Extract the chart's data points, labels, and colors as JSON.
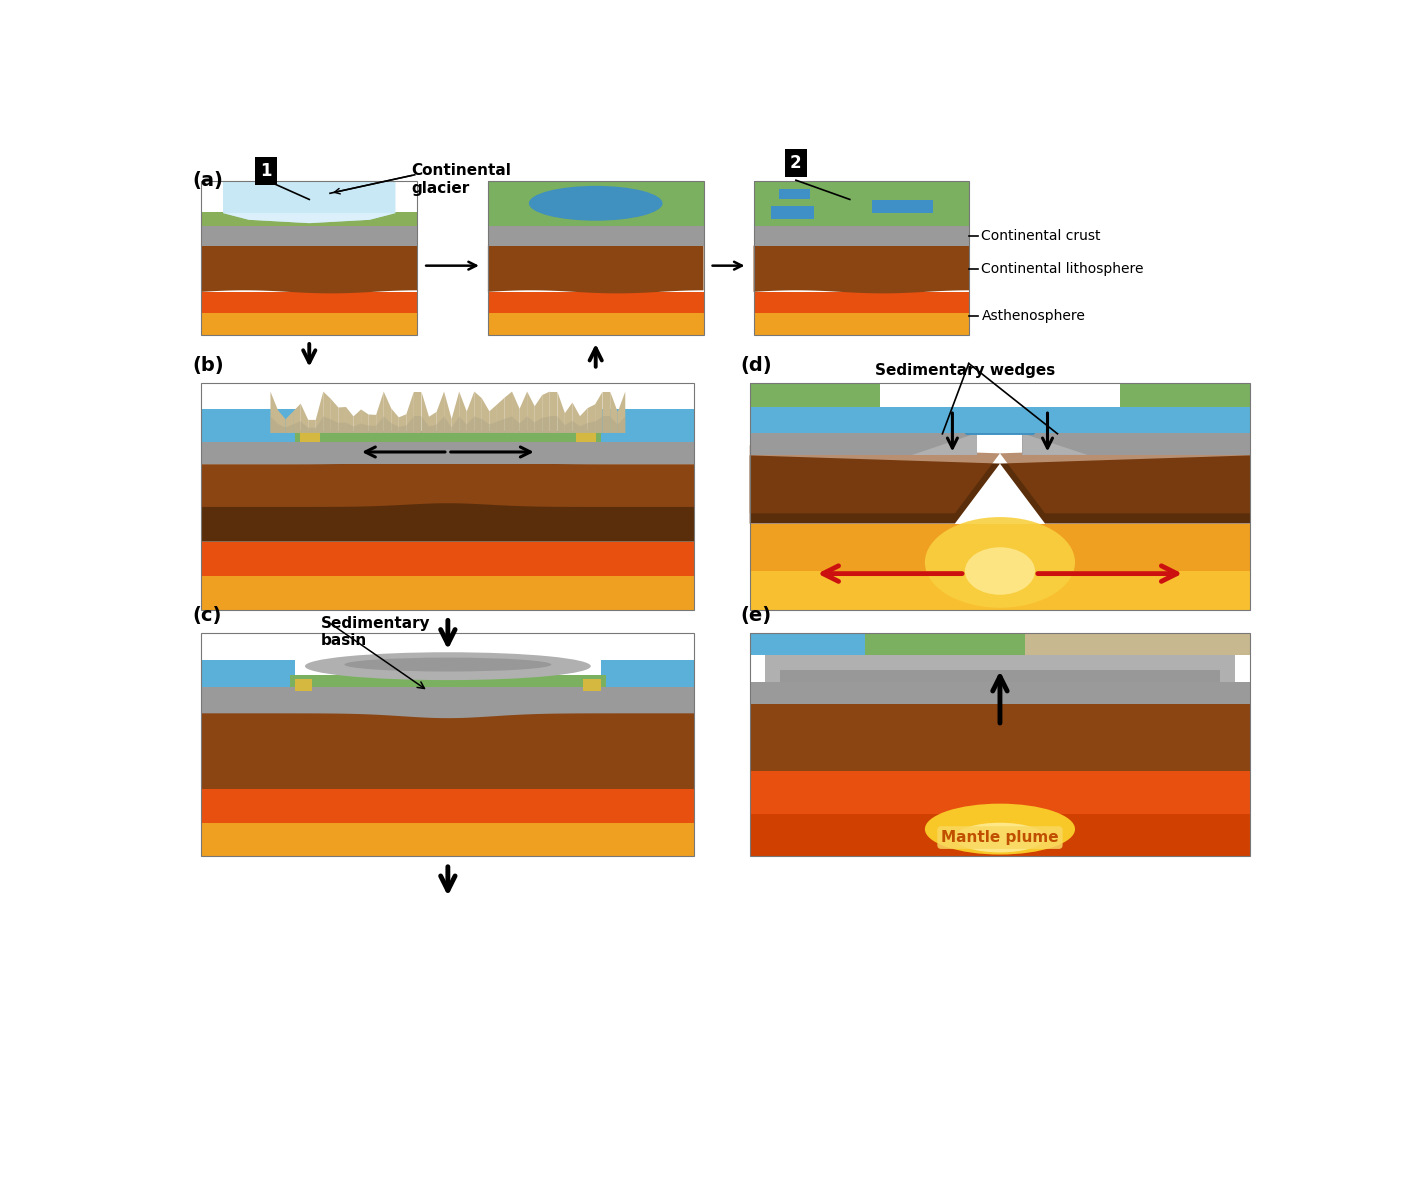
{
  "background_color": "#ffffff",
  "panel_labels": {
    "a": "(a)",
    "b": "(b)",
    "c": "(c)",
    "d": "(d)",
    "e": "(e)"
  },
  "annotations": {
    "continental_glacier": "Continental\nglacier",
    "continental_crust": "Continental crust",
    "continental_lithosphere": "Continental lithosphere",
    "asthenosphere": "Asthenosphere",
    "sedimentary_basin": "Sedimentary\nbasin",
    "sedimentary_wedges": "Sedimentary wedges",
    "mantle_plume": "Mantle plume",
    "label1": "1",
    "label2": "2"
  },
  "colors": {
    "glacier": "#c8e8f5",
    "glacier_white": "#e8f6ff",
    "crust_green": "#8aaf5a",
    "crust_green2": "#7ab060",
    "crust_gray": "#9a9a9a",
    "crust_dark_gray": "#808080",
    "litho_brown": "#8B4513",
    "litho_dark_brown": "#5a2e0a",
    "asthen_orange": "#d04000",
    "asthen_mid": "#e85010",
    "asthen_yellow": "#f0a020",
    "asthen_bright": "#f8c030",
    "water_blue": "#4090c0",
    "ocean_blue": "#5ab0d8",
    "rock_tan": "#c8b890",
    "rock_gray": "#b0a888",
    "sediment_gray": "#b0b0b0",
    "sediment_gray2": "#989898",
    "yellow_marker": "#d4b840",
    "arrow_black": "#111111",
    "arrow_red": "#cc1010",
    "label_box": "#111111",
    "label_text": "#ffffff"
  }
}
